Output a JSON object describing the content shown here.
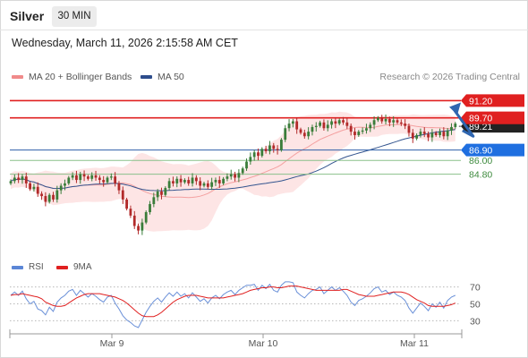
{
  "header": {
    "title": "Silver",
    "timeframe": "30 MIN"
  },
  "datetime": "Wednesday, March 11, 2026 2:15:58 AM CET",
  "legend": [
    {
      "label": "MA 20 + Bollinger Bands",
      "color": "#f08a8a"
    },
    {
      "label": "MA 50",
      "color": "#2e4d8c"
    }
  ],
  "copyright": "Research © 2026 Trading Central",
  "colors": {
    "up": "#3a7d3a",
    "down": "#b22a2a",
    "band": "#fde0e0",
    "ma20": "#f4a0a0",
    "ma50": "#34558f",
    "resistance": "#e02020",
    "support": "#2e5fa8",
    "target": "#3d8a3d",
    "arrow": "#2f66b0"
  },
  "chart_data": [
    {
      "type": "candlestick",
      "instrument": "Silver",
      "interval": "30 MIN",
      "ylim": [
        78.0,
        92.4
      ],
      "x_ticks": [
        "Mar 9",
        "Mar 10",
        "Mar 11"
      ],
      "y_ticks": [
        "91.20",
        "89.70",
        "86.90",
        "86.00",
        "84.80"
      ],
      "current_price_label": "89.21",
      "levels": [
        {
          "value": 91.2,
          "label": "91.20",
          "style": "resistance"
        },
        {
          "value": 89.7,
          "label": "89.70",
          "style": "resistance"
        },
        {
          "value": 86.9,
          "label": "86.90",
          "style": "pivot"
        },
        {
          "value": 86.0,
          "label": "86.00",
          "style": "support"
        },
        {
          "value": 84.8,
          "label": "84.80",
          "style": "support"
        }
      ],
      "close": [
        84.2,
        84.5,
        84.3,
        84.6,
        84.0,
        83.5,
        83.7,
        83.1,
        82.9,
        82.4,
        83.0,
        82.6,
        83.4,
        83.8,
        84.0,
        84.5,
        84.7,
        84.3,
        84.8,
        84.6,
        84.4,
        84.7,
        84.5,
        84.3,
        84.1,
        84.5,
        84.6,
        84.0,
        83.4,
        82.6,
        81.8,
        81.2,
        80.3,
        79.9,
        80.6,
        81.5,
        82.2,
        82.8,
        83.3,
        83.0,
        83.6,
        84.2,
        84.0,
        84.4,
        84.1,
        84.3,
        84.0,
        84.5,
        84.2,
        83.8,
        84.0,
        83.7,
        84.1,
        84.3,
        84.0,
        84.4,
        84.6,
        84.8,
        84.5,
        84.9,
        85.3,
        85.9,
        86.3,
        86.7,
        86.4,
        87.0,
        86.8,
        87.3,
        87.0,
        86.9,
        87.8,
        88.8,
        89.2,
        89.4,
        88.7,
        88.4,
        88.1,
        88.5,
        88.9,
        89.0,
        89.3,
        88.8,
        89.1,
        89.4,
        89.2,
        89.5,
        89.3,
        89.0,
        88.5,
        88.2,
        88.5,
        88.6,
        88.8,
        89.1,
        89.5,
        89.7,
        89.4,
        89.6,
        89.3,
        89.5,
        89.3,
        89.2,
        89.0,
        88.4,
        87.9,
        88.2,
        88.5,
        88.3,
        88.0,
        88.4,
        88.2,
        88.5,
        88.1,
        88.6,
        88.9,
        89.2
      ],
      "ma20_last": 88.9,
      "ma50_last": 88.9,
      "forecast_arrow": {
        "from": 88.6,
        "via": 88.1,
        "to": 90.8
      }
    },
    {
      "type": "line",
      "name": "RSI",
      "legend": [
        {
          "label": "RSI",
          "color": "#5b86d6"
        },
        {
          "label": "9MA",
          "color": "#e02020"
        }
      ],
      "ylim": [
        22,
        78
      ],
      "y_ticks": [
        70,
        50,
        30
      ],
      "series": [
        {
          "name": "RSI",
          "values": [
            60,
            64,
            60,
            65,
            56,
            50,
            53,
            44,
            42,
            37,
            46,
            41,
            52,
            57,
            60,
            65,
            67,
            60,
            66,
            62,
            58,
            62,
            59,
            55,
            52,
            58,
            60,
            51,
            44,
            36,
            31,
            28,
            24,
            22,
            31,
            40,
            47,
            53,
            57,
            52,
            58,
            63,
            59,
            64,
            59,
            62,
            57,
            63,
            58,
            53,
            56,
            51,
            57,
            60,
            56,
            61,
            64,
            66,
            61,
            66,
            69,
            72,
            72,
            73,
            66,
            72,
            68,
            73,
            66,
            64,
            72,
            76,
            76,
            75,
            64,
            60,
            57,
            62,
            66,
            67,
            70,
            62,
            66,
            70,
            66,
            69,
            65,
            60,
            52,
            48,
            54,
            56,
            59,
            63,
            68,
            70,
            64,
            66,
            61,
            64,
            60,
            58,
            54,
            45,
            39,
            45,
            51,
            47,
            42,
            50,
            46,
            52,
            45,
            54,
            58,
            60
          ]
        },
        {
          "name": "9MA",
          "values": [
            60,
            61,
            61,
            62,
            61,
            60,
            59,
            58,
            56,
            52,
            50,
            48,
            47,
            47,
            48,
            51,
            54,
            57,
            59,
            61,
            62,
            62,
            62,
            62,
            61,
            60,
            59,
            58,
            56,
            54,
            51,
            47,
            43,
            39,
            36,
            35,
            35,
            35,
            37,
            40,
            44,
            48,
            52,
            55,
            57,
            59,
            60,
            60,
            60,
            59,
            58,
            57,
            57,
            57,
            57,
            57,
            58,
            59,
            60,
            61,
            62,
            64,
            66,
            67,
            68,
            69,
            69,
            70,
            70,
            69,
            69,
            70,
            71,
            71,
            71,
            70,
            69,
            68,
            67,
            66,
            66,
            66,
            66,
            66,
            66,
            66,
            67,
            67,
            65,
            63,
            61,
            60,
            59,
            59,
            59,
            60,
            61,
            62,
            63,
            64,
            64,
            64,
            63,
            61,
            58,
            55,
            53,
            51,
            48,
            47,
            47,
            47,
            47,
            48,
            49,
            51
          ]
        }
      ]
    }
  ]
}
